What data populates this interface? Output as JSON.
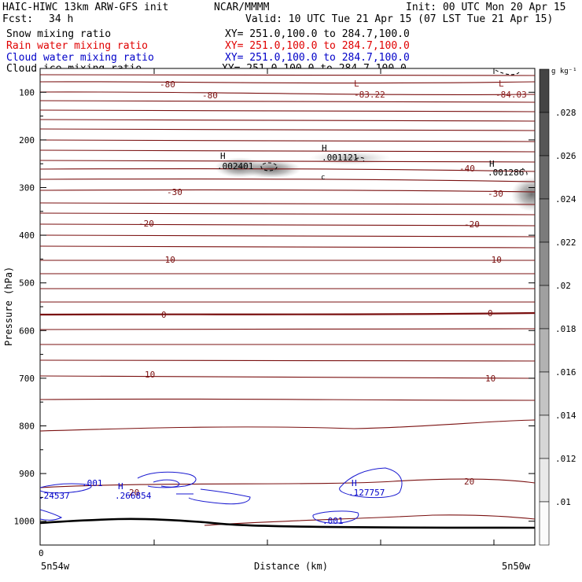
{
  "header": {
    "model": "HAIC-HIWC 13km ARW-GFS init",
    "org": "NCAR/MMMM",
    "init": "Init: 00 UTC Mon 20 Apr 15",
    "fcst_label": "Fcst:",
    "fcst_value": "34 h",
    "valid": "Valid: 10 UTC Tue 21 Apr 15 (07 LST Tue 21 Apr 15)",
    "fields": [
      {
        "name": "Snow mixing ratio",
        "xy": "XY= 251.0,100.0 to 284.7,100.0",
        "color": "#000000"
      },
      {
        "name": "Rain water mixing ratio",
        "xy": "XY= 251.0,100.0 to 284.7,100.0",
        "color": "#e00000"
      },
      {
        "name": "Cloud water mixing ratio",
        "xy": "XY= 251.0,100.0 to 284.7,100.0",
        "color": "#0000c8"
      },
      {
        "name": "Cloud ice mixing ratio",
        "xy": "XY= 251.0,100.0 to 284.7,100.0",
        "color": "#000000"
      }
    ]
  },
  "chart_data": {
    "type": "contour",
    "ylabel": "Pressure (hPa)",
    "xlabel": "Distance (km)",
    "x_tick_labels": [
      "0"
    ],
    "x_end_labels": [
      "5n54w",
      "5n50w"
    ],
    "y_ticks": [
      100,
      200,
      300,
      400,
      500,
      600,
      700,
      800,
      900,
      1000
    ],
    "y_range": [
      50,
      1050
    ],
    "colorbar": {
      "unit": "g kg⁻¹",
      "labels": [
        ".01",
        ".012",
        ".014",
        ".016",
        ".018",
        ".02",
        ".022",
        ".024",
        ".026",
        ".028"
      ]
    },
    "temperature_contour_labels": [
      {
        "text": "-80",
        "p": 86
      },
      {
        "text": "-80",
        "p": 100
      },
      {
        "text": "-40",
        "p": 254
      },
      {
        "text": "-30",
        "p": 322
      },
      {
        "text": "-30",
        "p": 326
      },
      {
        "text": "-20",
        "p": 385
      },
      {
        "text": "-20",
        "p": 387
      },
      {
        "text": "-10",
        "p": 475
      },
      {
        "text": "-10",
        "p": 475
      },
      {
        "text": "0",
        "p": 564
      },
      {
        "text": "0",
        "p": 561
      },
      {
        "text": "10",
        "p": 689
      },
      {
        "text": "10",
        "p": 694
      },
      {
        "text": "20",
        "p": 918
      },
      {
        "text": "20",
        "p": 938
      }
    ],
    "extrema": [
      {
        "mark": "L",
        "value": "-83.22",
        "color": "#8b1a1a"
      },
      {
        "mark": "L",
        "value": "-84.03",
        "color": "#8b1a1a"
      },
      {
        "mark": "H",
        "value": ".002401",
        "color": "#000000"
      },
      {
        "mark": "H",
        "value": ".001121",
        "color": "#000000"
      },
      {
        "mark": "H",
        "value": ".001286",
        "color": "#000000"
      },
      {
        "mark": "H",
        "value": ".266854",
        "color": "#0000c8"
      },
      {
        "mark": "H",
        "value": ".127757",
        "color": "#0000c8"
      }
    ],
    "cloud_water_labels": [
      ".001",
      ".001",
      ".24537"
    ],
    "small_labels": [
      "c"
    ]
  }
}
